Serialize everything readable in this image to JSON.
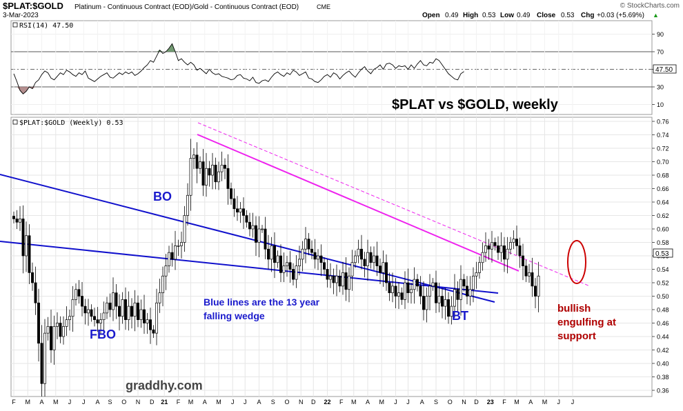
{
  "header": {
    "symbol": "$PLAT:$GOLD",
    "description": "Platinum - Continuous Contract (EOD)/Gold - Continuous Contract (EOD)",
    "exchange": "CME",
    "date": "3-Mar-2023",
    "brand": "© StockCharts.com",
    "ohlc": {
      "open_label": "Open",
      "open": "0.49",
      "high_label": "High",
      "high": "0.53",
      "low_label": "Low",
      "low": "0.49",
      "close_label": "Close",
      "close": "0.53",
      "chg_label": "Chg",
      "chg": "+0.03 (+5.69%)",
      "chg_arrow": "▲"
    }
  },
  "colors": {
    "rsi_line": "#000000",
    "rsi_overbought_fill": "#5a8a5a",
    "rsi_oversold_fill": "#a77a7a",
    "wedge": "#1010cc",
    "channel": "#ee22ee",
    "annotation_blue": "#1a1acc",
    "annotation_red": "#b00000",
    "grid": "#e6e6e6"
  },
  "chart_data": [
    {
      "type": "line",
      "title": "RSI(14) 47.50",
      "legend": "RSI(14) 47.50",
      "ylim": [
        0,
        100
      ],
      "yticks": [
        10,
        30,
        50,
        70,
        90
      ],
      "overbought": 70,
      "oversold": 30,
      "center": 50,
      "last_value": "47.50",
      "values": [
        45,
        36,
        26,
        22,
        25,
        30,
        28,
        35,
        38,
        44,
        48,
        46,
        40,
        38,
        42,
        46,
        44,
        49,
        47,
        44,
        42,
        46,
        44,
        48,
        40,
        38,
        36,
        39,
        42,
        44,
        46,
        41,
        40,
        43,
        46,
        44,
        47,
        45,
        47,
        43,
        45,
        48,
        52,
        55,
        60,
        58,
        65,
        72,
        68,
        70,
        74,
        79,
        70,
        60,
        62,
        58,
        55,
        58,
        55,
        49,
        51,
        48,
        45,
        50,
        46,
        44,
        45,
        42,
        41,
        40,
        38,
        39,
        43,
        44,
        40,
        39,
        37,
        41,
        35,
        34,
        37,
        38,
        36,
        41,
        45,
        47,
        44,
        42,
        46,
        44,
        49,
        47,
        43,
        45,
        47,
        40,
        39,
        36,
        35,
        38,
        42,
        44,
        41,
        46,
        44,
        39,
        43,
        46,
        48,
        44,
        41,
        46,
        50,
        53,
        48,
        45,
        50,
        52,
        55,
        50,
        56,
        57,
        55,
        51,
        54,
        53,
        54,
        50,
        55,
        51,
        56,
        60,
        55,
        54,
        58,
        57,
        62,
        60,
        55,
        50,
        45,
        42,
        39,
        38,
        45,
        47.5
      ]
    },
    {
      "type": "candlestick",
      "title": "$PLAT:$GOLD (Weekly) 0.53",
      "legend": "$PLAT:$GOLD (Weekly) 0.53",
      "ylim": [
        0.35,
        0.77
      ],
      "yticks": [
        "0.36",
        "0.38",
        "0.40",
        "0.42",
        "0.44",
        "0.46",
        "0.48",
        "0.50",
        "0.52",
        "0.54",
        "0.56",
        "0.58",
        "0.60",
        "0.62",
        "0.64",
        "0.66",
        "0.68",
        "0.70",
        "0.72",
        "0.74",
        "0.76"
      ],
      "last_price": "0.53",
      "x_labels": [
        "F",
        "M",
        "A",
        "M",
        "J",
        "J",
        "A",
        "S",
        "O",
        "N",
        "D",
        "21",
        "F",
        "M",
        "A",
        "M",
        "J",
        "J",
        "A",
        "S",
        "O",
        "N",
        "D",
        "22",
        "F",
        "M",
        "A",
        "M",
        "J",
        "J",
        "A",
        "S",
        "O",
        "N",
        "D",
        "23",
        "F",
        "M",
        "A",
        "M",
        "J",
        "J"
      ],
      "x_label_weeks": [
        0.0,
        4.5,
        9.0,
        13.5,
        18.0,
        22.5,
        27.0,
        31.0,
        35.5,
        40.0,
        44.5,
        48.5,
        53.0,
        57.0,
        61.5,
        66.0,
        70.5,
        74.5,
        79.0,
        83.5,
        88.0,
        92.5,
        96.5,
        101.0,
        105.5,
        109.5,
        114.0,
        118.5,
        123.0,
        127.0,
        131.5,
        136.0,
        140.5,
        145.0,
        149.0,
        153.5,
        158.0,
        162.0,
        166.5,
        171.0,
        175.5,
        180.0
      ],
      "closes": [
        0.615,
        0.61,
        0.615,
        0.56,
        0.59,
        0.535,
        0.52,
        0.49,
        0.43,
        0.37,
        0.445,
        0.455,
        0.42,
        0.455,
        0.46,
        0.44,
        0.455,
        0.465,
        0.47,
        0.495,
        0.51,
        0.5,
        0.485,
        0.475,
        0.48,
        0.47,
        0.465,
        0.46,
        0.465,
        0.475,
        0.49,
        0.48,
        0.505,
        0.485,
        0.47,
        0.495,
        0.465,
        0.485,
        0.47,
        0.49,
        0.465,
        0.48,
        0.46,
        0.465,
        0.45,
        0.445,
        0.49,
        0.505,
        0.53,
        0.545,
        0.565,
        0.555,
        0.575,
        0.575,
        0.58,
        0.62,
        0.65,
        0.705,
        0.71,
        0.69,
        0.7,
        0.665,
        0.69,
        0.68,
        0.695,
        0.67,
        0.685,
        0.695,
        0.69,
        0.66,
        0.645,
        0.63,
        0.625,
        0.63,
        0.62,
        0.61,
        0.6,
        0.605,
        0.58,
        0.6,
        0.6,
        0.57,
        0.555,
        0.575,
        0.55,
        0.56,
        0.535,
        0.545,
        0.55,
        0.54,
        0.525,
        0.545,
        0.555,
        0.57,
        0.585,
        0.57,
        0.565,
        0.555,
        0.56,
        0.55,
        0.54,
        0.525,
        0.53,
        0.52,
        0.53,
        0.515,
        0.535,
        0.51,
        0.53,
        0.55,
        0.56,
        0.57,
        0.555,
        0.545,
        0.565,
        0.55,
        0.56,
        0.545,
        0.535,
        0.55,
        0.52,
        0.505,
        0.515,
        0.5,
        0.505,
        0.495,
        0.52,
        0.505,
        0.51,
        0.525,
        0.515,
        0.5,
        0.48,
        0.5,
        0.515,
        0.52,
        0.49,
        0.5,
        0.485,
        0.495,
        0.47,
        0.485,
        0.51,
        0.495,
        0.525,
        0.515,
        0.5,
        0.51,
        0.53,
        0.535,
        0.55,
        0.565,
        0.575,
        0.57,
        0.58,
        0.575,
        0.565,
        0.575,
        0.555,
        0.57,
        0.58,
        0.585,
        0.575,
        0.56,
        0.545,
        0.53,
        0.535,
        0.515,
        0.5,
        0.53
      ]
    }
  ],
  "annotations": {
    "title": "$PLAT vs $GOLD, weekly",
    "bo": "BO",
    "fbo": "FBO",
    "bt": "BT",
    "wedge_note": [
      "Blue lines are the 13 year",
      "falling wedge"
    ],
    "engulfing_note": [
      "bullish",
      "engulfing at",
      "support"
    ],
    "watermark": "graddhy.com"
  }
}
